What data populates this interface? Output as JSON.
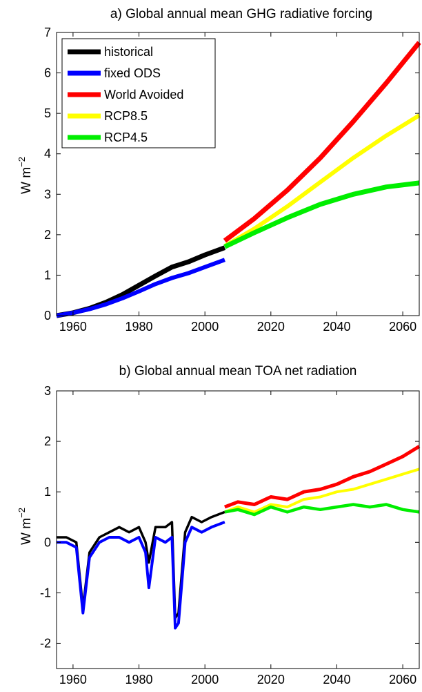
{
  "chart_data": [
    {
      "type": "line",
      "title": "a) Global annual mean GHG radiative forcing",
      "ylabel": "W m",
      "ylabel_exponent": "−2",
      "xlim": [
        1955,
        2065
      ],
      "ylim": [
        0,
        7
      ],
      "xticks": [
        1960,
        1980,
        2000,
        2020,
        2040,
        2060
      ],
      "yticks": [
        0,
        1,
        2,
        3,
        4,
        5,
        6,
        7
      ],
      "legend": "top-left",
      "series": [
        {
          "name": "historical",
          "color": "#000000",
          "x": [
            1955,
            1960,
            1965,
            1970,
            1975,
            1980,
            1985,
            1990,
            1995,
            2000,
            2006
          ],
          "y": [
            0.0,
            0.07,
            0.18,
            0.33,
            0.52,
            0.75,
            0.98,
            1.2,
            1.33,
            1.5,
            1.68
          ]
        },
        {
          "name": "fixed ODS",
          "color": "#0000ff",
          "x": [
            1955,
            1960,
            1965,
            1970,
            1975,
            1980,
            1985,
            1990,
            1995,
            2000,
            2006
          ],
          "y": [
            0.0,
            0.07,
            0.16,
            0.28,
            0.43,
            0.6,
            0.78,
            0.93,
            1.05,
            1.2,
            1.38
          ]
        },
        {
          "name": "World Avoided",
          "color": "#ff0000",
          "x": [
            2006,
            2015,
            2025,
            2035,
            2045,
            2055,
            2065
          ],
          "y": [
            1.85,
            2.4,
            3.1,
            3.9,
            4.8,
            5.75,
            6.75
          ]
        },
        {
          "name": "RCP8.5",
          "color": "#ffff00",
          "x": [
            2006,
            2015,
            2025,
            2035,
            2045,
            2055,
            2065
          ],
          "y": [
            1.72,
            2.15,
            2.7,
            3.3,
            3.9,
            4.45,
            4.95
          ]
        },
        {
          "name": "RCP4.5",
          "color": "#00ee00",
          "x": [
            2006,
            2015,
            2025,
            2035,
            2045,
            2055,
            2065
          ],
          "y": [
            1.7,
            2.05,
            2.42,
            2.75,
            3.0,
            3.18,
            3.28
          ]
        }
      ]
    },
    {
      "type": "line",
      "title": "b) Global annual mean TOA net radiation",
      "ylabel": "W m",
      "ylabel_exponent": "−2",
      "xlim": [
        1955,
        2065
      ],
      "ylim": [
        -2.5,
        3
      ],
      "xticks": [
        1960,
        1980,
        2000,
        2020,
        2040,
        2060
      ],
      "yticks": [
        -2,
        -1,
        0,
        1,
        2,
        3
      ],
      "series": [
        {
          "name": "historical",
          "color": "#000000",
          "x": [
            1955,
            1958,
            1961,
            1963,
            1965,
            1968,
            1971,
            1974,
            1977,
            1980,
            1982,
            1983,
            1985,
            1988,
            1990,
            1991,
            1992,
            1994,
            1996,
            1999,
            2002,
            2006
          ],
          "y": [
            0.1,
            0.1,
            0.0,
            -1.3,
            -0.2,
            0.1,
            0.2,
            0.3,
            0.2,
            0.3,
            0.0,
            -0.4,
            0.3,
            0.3,
            0.4,
            -1.5,
            -1.4,
            0.2,
            0.5,
            0.4,
            0.5,
            0.6
          ]
        },
        {
          "name": "fixed ODS",
          "color": "#0000ff",
          "x": [
            1955,
            1958,
            1961,
            1963,
            1965,
            1968,
            1971,
            1974,
            1977,
            1980,
            1982,
            1983,
            1985,
            1988,
            1990,
            1991,
            1992,
            1994,
            1996,
            1999,
            2002,
            2006
          ],
          "y": [
            0.0,
            0.0,
            -0.1,
            -1.4,
            -0.3,
            0.0,
            0.1,
            0.1,
            0.0,
            0.1,
            -0.2,
            -0.9,
            0.1,
            0.0,
            0.1,
            -1.7,
            -1.6,
            0.0,
            0.3,
            0.2,
            0.3,
            0.4
          ]
        },
        {
          "name": "World Avoided",
          "color": "#ff0000",
          "x": [
            2006,
            2010,
            2015,
            2020,
            2025,
            2030,
            2035,
            2040,
            2045,
            2050,
            2055,
            2060,
            2065
          ],
          "y": [
            0.7,
            0.8,
            0.75,
            0.9,
            0.85,
            1.0,
            1.05,
            1.15,
            1.3,
            1.4,
            1.55,
            1.7,
            1.9
          ]
        },
        {
          "name": "RCP8.5",
          "color": "#ffff00",
          "x": [
            2006,
            2010,
            2015,
            2020,
            2025,
            2030,
            2035,
            2040,
            2045,
            2050,
            2055,
            2060,
            2065
          ],
          "y": [
            0.6,
            0.7,
            0.6,
            0.75,
            0.7,
            0.85,
            0.9,
            1.0,
            1.05,
            1.15,
            1.25,
            1.35,
            1.45
          ]
        },
        {
          "name": "RCP4.5",
          "color": "#00ee00",
          "x": [
            2006,
            2010,
            2015,
            2020,
            2025,
            2030,
            2035,
            2040,
            2045,
            2050,
            2055,
            2060,
            2065
          ],
          "y": [
            0.6,
            0.65,
            0.55,
            0.7,
            0.6,
            0.7,
            0.65,
            0.7,
            0.75,
            0.7,
            0.75,
            0.65,
            0.6
          ]
        }
      ]
    }
  ]
}
